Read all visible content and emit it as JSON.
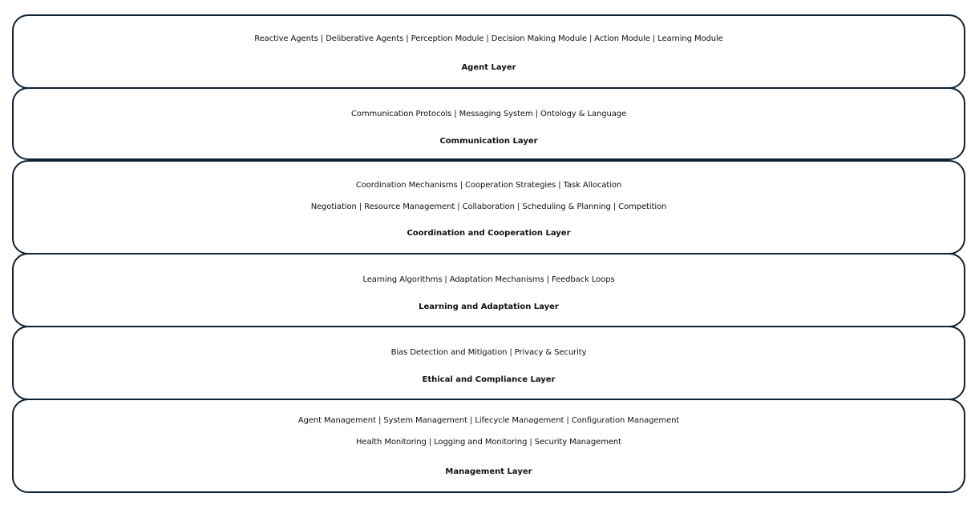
{
  "layers": [
    {
      "title": "Agent Layer",
      "components": [
        "Reactive Agents | Deliberative Agents | Perception Module | Decision Making Module | Action Module | Learning Module"
      ]
    },
    {
      "title": "Communication Layer",
      "components": [
        "Communication Protocols | Messaging System | Ontology & Language"
      ]
    },
    {
      "title": "Coordination and Cooperation Layer",
      "components": [
        "Coordination Mechanisms | Cooperation Strategies | Task Allocation",
        "Negotiation | Resource Management | Collaboration | Scheduling & Planning | Competition"
      ]
    },
    {
      "title": "Learning and Adaptation Layer",
      "components": [
        "Learning Algorithms | Adaptation Mechanisms | Feedback Loops"
      ]
    },
    {
      "title": "Ethical and Compliance Layer",
      "components": [
        "Bias Detection and Mitigation | Privacy & Security"
      ]
    },
    {
      "title": "Management Layer",
      "components": [
        "Agent Management | System Management | Lifecycle Management | Configuration Management",
        "Health Monitoring | Logging and Monitoring | Security Management"
      ]
    }
  ]
}
